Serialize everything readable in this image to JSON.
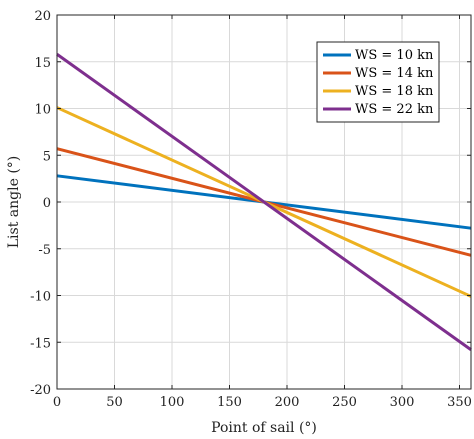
{
  "chart_data": {
    "type": "line",
    "xlabel": "Point of sail (°)",
    "ylabel": "List angle (°)",
    "xlim": [
      0,
      360
    ],
    "ylim": [
      -20,
      20
    ],
    "xticks": [
      0,
      50,
      100,
      150,
      200,
      250,
      300,
      350
    ],
    "yticks": [
      -20,
      -15,
      -10,
      -5,
      0,
      5,
      10,
      15,
      20
    ],
    "grid": true,
    "legend_position": "top-right",
    "series": [
      {
        "name": "WS = 10 kn",
        "color": "#0072BD",
        "x": [
          0,
          360
        ],
        "y": [
          2.8,
          -2.8
        ]
      },
      {
        "name": "WS = 14 kn",
        "color": "#D95319",
        "x": [
          0,
          360
        ],
        "y": [
          5.7,
          -5.7
        ]
      },
      {
        "name": "WS = 18 kn",
        "color": "#EDB120",
        "x": [
          0,
          360
        ],
        "y": [
          10.1,
          -10.1
        ]
      },
      {
        "name": "WS = 22 kn",
        "color": "#7E2F8E",
        "x": [
          0,
          360
        ],
        "y": [
          15.8,
          -15.8
        ]
      }
    ]
  }
}
